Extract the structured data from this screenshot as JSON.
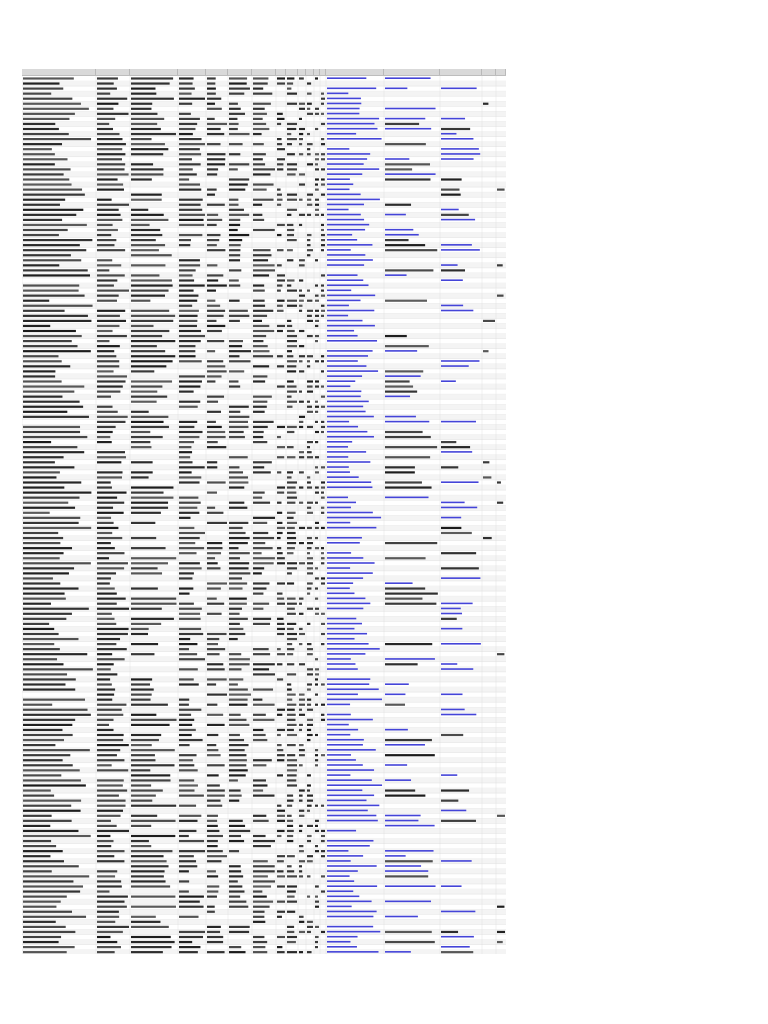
{
  "sheet": {
    "columns": [
      "",
      "",
      "",
      "",
      "",
      "",
      "",
      "",
      "",
      "",
      "",
      "",
      "",
      "",
      "",
      "",
      "",
      ""
    ],
    "row_count": 174
  },
  "colors": {
    "header_bg": "#d9d9d9",
    "text": "#1a1a1a",
    "link": "#3a3ad6",
    "gridline": "#dcdcdc",
    "zebra": "#f4f4f4"
  }
}
